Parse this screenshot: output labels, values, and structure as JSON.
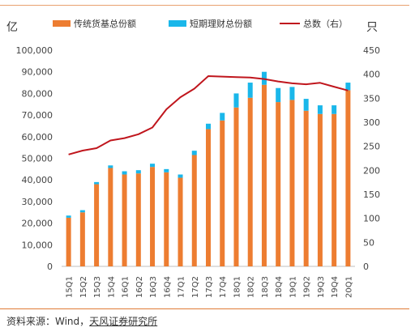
{
  "chart_data": {
    "type": "bar",
    "left_unit": "亿",
    "right_unit": "只",
    "categories": [
      "15Q1",
      "15Q2",
      "15Q3",
      "15Q4",
      "16Q1",
      "16Q2",
      "16Q3",
      "16Q4",
      "17Q1",
      "17Q2",
      "17Q3",
      "17Q4",
      "18Q1",
      "18Q2",
      "18Q3",
      "18Q4",
      "19Q1",
      "19Q2",
      "19Q3",
      "19Q4",
      "20Q1"
    ],
    "series": [
      {
        "name": "传统货基总份额",
        "type": "bar",
        "stack": "share",
        "axis": "left",
        "color": "#ed7d31",
        "values": [
          22500,
          25000,
          38000,
          45500,
          42500,
          43000,
          46000,
          43500,
          41000,
          51500,
          63500,
          67500,
          73500,
          78000,
          84000,
          76000,
          77000,
          72000,
          70500,
          70500,
          81500
        ]
      },
      {
        "name": "短期理财总份额",
        "type": "bar",
        "stack": "share",
        "axis": "left",
        "color": "#1ab7ea",
        "values": [
          1000,
          1000,
          1000,
          1200,
          1500,
          1500,
          1500,
          1500,
          1500,
          2000,
          2500,
          3500,
          6500,
          7000,
          6000,
          6500,
          6000,
          5500,
          4000,
          4000,
          3500
        ]
      },
      {
        "name": "总数（右）",
        "type": "line",
        "axis": "right",
        "color": "#c0161d",
        "values": [
          233,
          241,
          246,
          262,
          267,
          275,
          289,
          327,
          352,
          370,
          396,
          395,
          394,
          393,
          390,
          385,
          381,
          379,
          382,
          374,
          366
        ]
      }
    ],
    "y_left": {
      "min": 0,
      "max": 100000,
      "ticks": [
        "0",
        "10,000",
        "20,000",
        "30,000",
        "40,000",
        "50,000",
        "60,000",
        "70,000",
        "80,000",
        "90,000",
        "100,000"
      ]
    },
    "y_right": {
      "min": 0,
      "max": 450,
      "ticks": [
        "0",
        "50",
        "100",
        "150",
        "200",
        "250",
        "300",
        "350",
        "400",
        "450"
      ]
    },
    "grid": false,
    "legend_position": "top"
  },
  "source": {
    "prefix": "资料来源：Wind，",
    "brand": "天风证券研究所"
  }
}
